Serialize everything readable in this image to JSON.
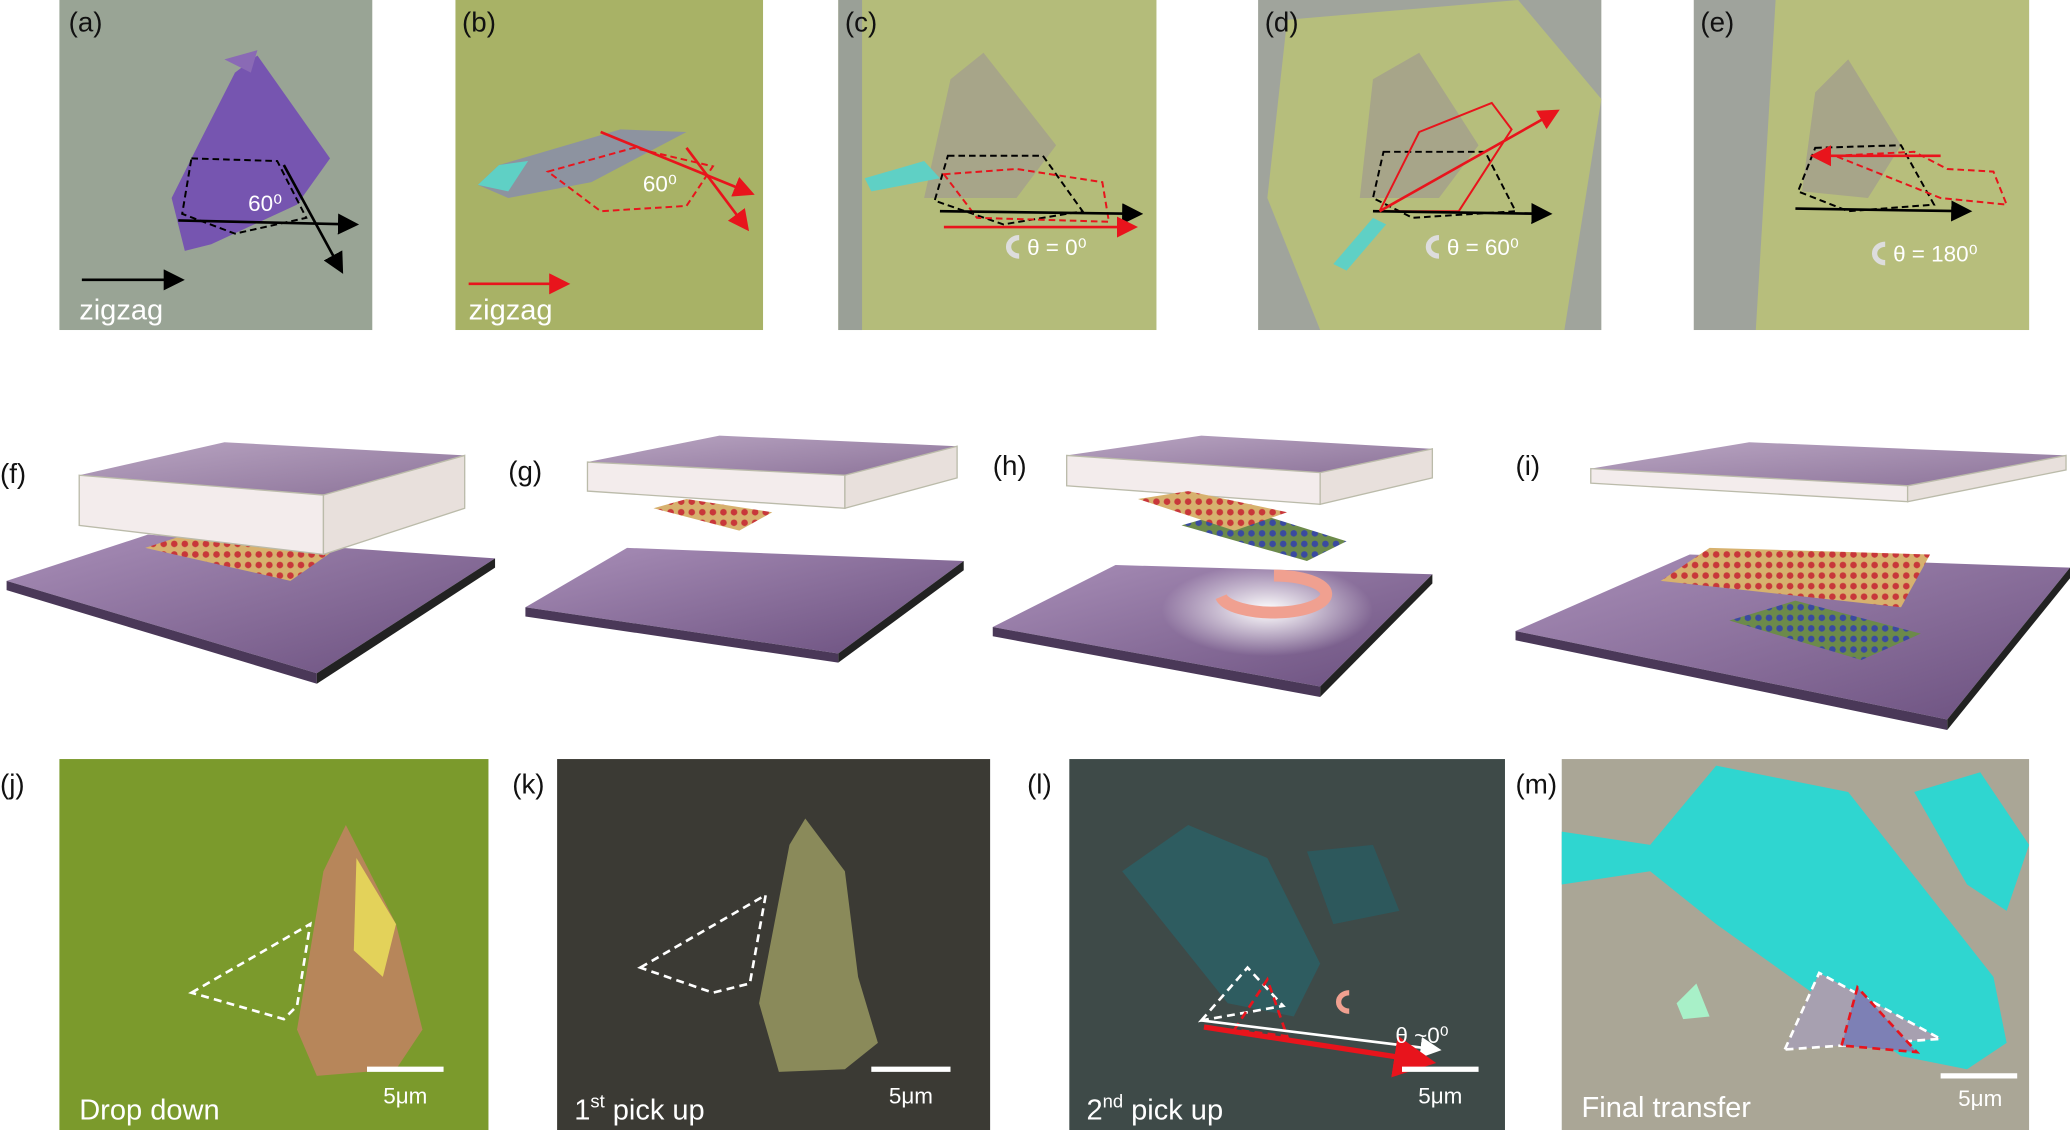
{
  "top_row": [
    {
      "label": "(a)",
      "direction": "zigzag",
      "angle": "60⁰"
    },
    {
      "label": "(b)",
      "direction": "zigzag",
      "angle": "60⁰"
    },
    {
      "label": "(c)",
      "rotation": "θ = 0⁰"
    },
    {
      "label": "(d)",
      "rotation": "θ = 60⁰"
    },
    {
      "label": "(e)",
      "rotation": "θ = 180⁰"
    }
  ],
  "middle_row": [
    {
      "label": "(f)"
    },
    {
      "label": "(g)"
    },
    {
      "label": "(h)"
    },
    {
      "label": "(i)"
    }
  ],
  "bottom_row": [
    {
      "label": "(j)",
      "caption": "Drop down",
      "scale_bar": "5μm"
    },
    {
      "label": "(k)",
      "caption": {
        "ordinal": "1",
        "suffix": "st",
        "text": "pick up"
      },
      "scale_bar": "5μm"
    },
    {
      "label": "(l)",
      "caption": {
        "ordinal": "2",
        "suffix": "nd",
        "text": "pick up"
      },
      "scale_bar": "5μm",
      "angle": "θ ~0⁰"
    },
    {
      "label": "(m)",
      "caption": "Final transfer",
      "scale_bar": "5μm"
    }
  ]
}
